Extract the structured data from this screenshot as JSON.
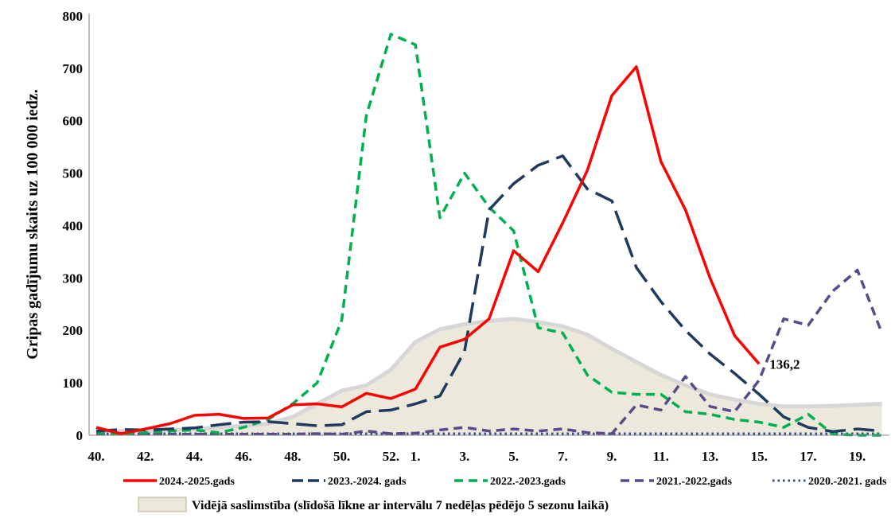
{
  "chart_data": {
    "type": "line",
    "title": "",
    "xlabel": "",
    "ylabel": "Gripas gadījumu skaits uz 100 000 iedz.",
    "ylim": [
      0,
      800
    ],
    "yticks": [
      0,
      100,
      200,
      300,
      400,
      500,
      600,
      700,
      800
    ],
    "weeks": [
      "40.",
      "41.",
      "42.",
      "43.",
      "44.",
      "45.",
      "46.",
      "47.",
      "48.",
      "49.",
      "50.",
      "51.",
      "52.",
      "1.",
      "2.",
      "3.",
      "4.",
      "5.",
      "6.",
      "7.",
      "8.",
      "9.",
      "10.",
      "11.",
      "12.",
      "13.",
      "14.",
      "15.",
      "16.",
      "17.",
      "18.",
      "19.",
      "20."
    ],
    "xtick_labels": [
      "40.",
      "42.",
      "44.",
      "46.",
      "48.",
      "50.",
      "52.",
      "1.",
      "3.",
      "5.",
      "7.",
      "9.",
      "11.",
      "13.",
      "15.",
      "17.",
      "19."
    ],
    "grid": false,
    "legend_position": "bottom",
    "series": [
      {
        "name": "2024.-2025.gads",
        "color": "#ff0000",
        "style": "solid",
        "values": [
          15,
          3,
          12,
          22,
          38,
          40,
          32,
          33,
          58,
          60,
          54,
          80,
          70,
          88,
          168,
          183,
          222,
          352,
          312,
          405,
          505,
          648,
          703,
          522,
          430,
          300,
          190,
          136.2
        ]
      },
      {
        "name": "2023.-2024. gads",
        "color": "#1f3a5f",
        "style": "longdash",
        "values": [
          8,
          11,
          10,
          12,
          14,
          20,
          25,
          26,
          22,
          18,
          20,
          45,
          48,
          60,
          75,
          160,
          430,
          480,
          515,
          533,
          470,
          447,
          320,
          255,
          200,
          155,
          118,
          78,
          35,
          15,
          7,
          12,
          8
        ]
      },
      {
        "name": "2022.-2023.gads",
        "color": "#00b050",
        "style": "dash",
        "values": [
          5,
          3,
          5,
          8,
          10,
          5,
          15,
          30,
          60,
          100,
          220,
          610,
          765,
          745,
          415,
          500,
          435,
          390,
          205,
          195,
          115,
          82,
          78,
          78,
          45,
          40,
          30,
          25,
          15,
          40,
          2,
          0,
          0
        ]
      },
      {
        "name": "2021.-2022.gads",
        "color": "#5b4a8a",
        "style": "dash",
        "values": [
          2,
          2,
          2,
          2,
          2,
          2,
          2,
          2,
          2,
          3,
          2,
          8,
          3,
          4,
          10,
          15,
          8,
          12,
          8,
          12,
          5,
          3,
          58,
          48,
          112,
          55,
          45,
          105,
          222,
          210,
          275,
          315,
          195
        ]
      },
      {
        "name": "2020.-2021. gads",
        "color": "#2f4f8f",
        "style": "dot",
        "values": [
          3,
          3,
          3,
          3,
          3,
          3,
          3,
          3,
          3,
          3,
          3,
          3,
          3,
          3,
          3,
          3,
          3,
          3,
          3,
          3,
          3,
          3,
          3,
          3,
          3,
          3,
          3,
          3,
          3,
          3,
          3,
          3,
          3
        ]
      }
    ],
    "area": {
      "name": "Vidējā saslimstība (slīdošā līkne ar intervālu 7 nedēļas pēdējo 5 sezonu laikā)",
      "fill": "#ece9dc",
      "stroke": "#d7d7d7",
      "values": [
        8,
        8,
        9,
        10,
        12,
        15,
        18,
        22,
        35,
        60,
        85,
        95,
        125,
        178,
        202,
        212,
        218,
        222,
        216,
        208,
        192,
        165,
        140,
        115,
        95,
        78,
        68,
        60,
        55,
        55,
        56,
        58,
        60
      ]
    },
    "annotations": [
      {
        "text": "136,2",
        "week": "15.",
        "value": 136.2
      }
    ]
  }
}
